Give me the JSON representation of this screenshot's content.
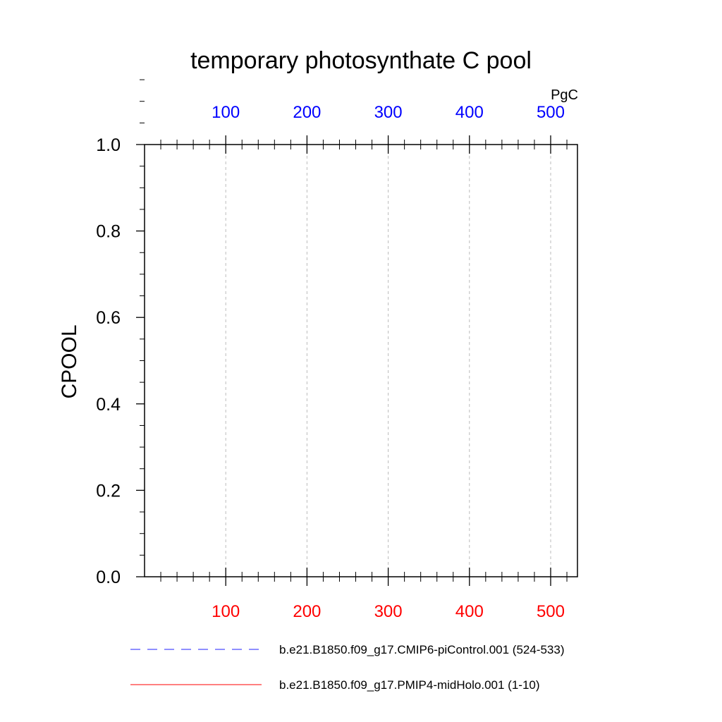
{
  "chart_data": {
    "type": "line",
    "title": "temporary photosynthate C pool",
    "ylabel": "CPOOL",
    "xlabel": "",
    "units": "PgC",
    "ylim": [
      0.0,
      1.0
    ],
    "yticks": [
      "0.0",
      "0.2",
      "0.4",
      "0.6",
      "0.8",
      "1.0"
    ],
    "xlim": [
      0,
      533
    ],
    "xticks_bottom": [
      "100",
      "200",
      "300",
      "400",
      "500"
    ],
    "xticks_top": [
      "100",
      "200",
      "300",
      "400",
      "500"
    ],
    "bottom_axis_color": "#ff0000",
    "top_axis_color": "#0000ff",
    "grid": "vertical dashed at top-axis ticks",
    "legend_position": "bottom",
    "series": [
      {
        "name": "b.e21.B1850.f09_g17.CMIP6-piControl.001 (524-533)",
        "color": "#0000ff",
        "style": "dashed",
        "values": []
      },
      {
        "name": "b.e21.B1850.f09_g17.PMIP4-midHolo.001 (1-10)",
        "color": "#ff0000",
        "style": "solid",
        "values": []
      }
    ]
  }
}
